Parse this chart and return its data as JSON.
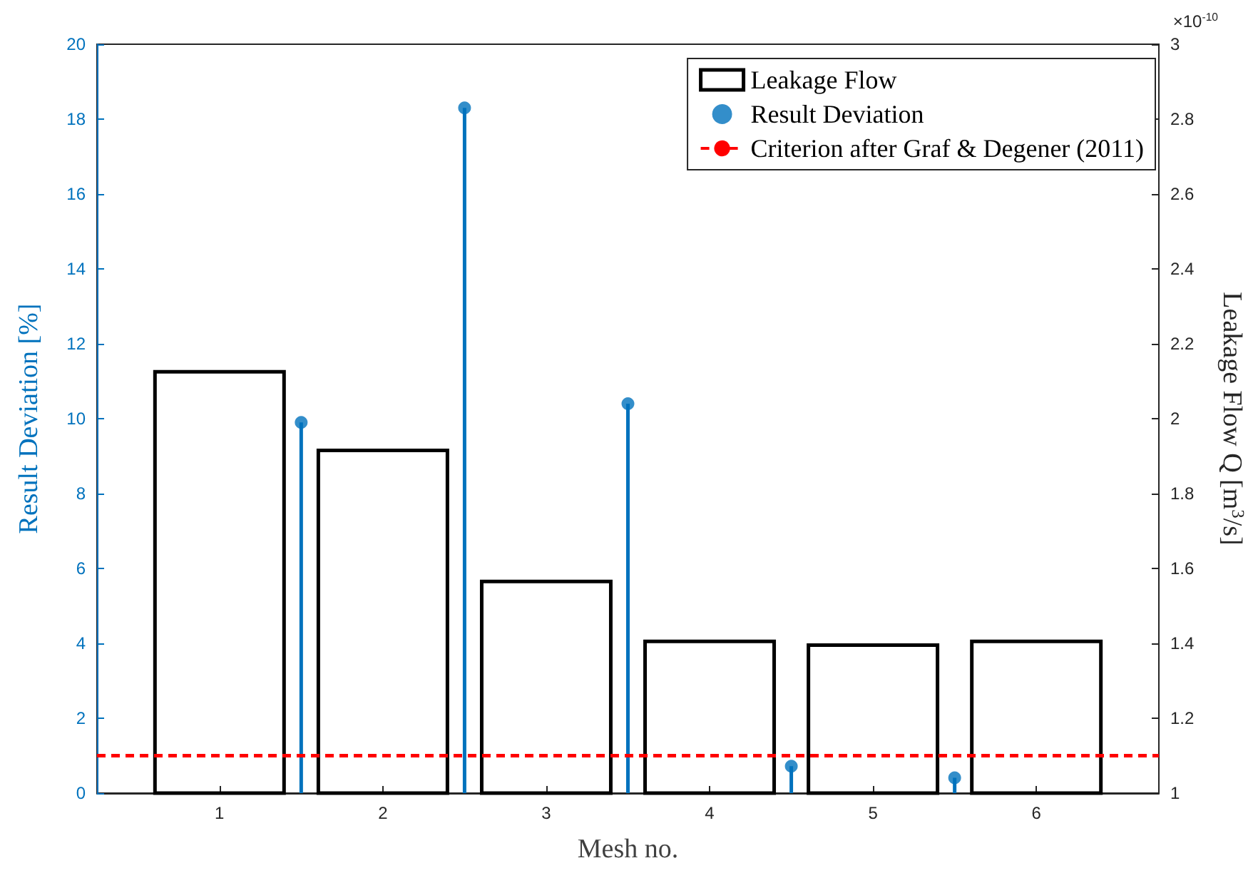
{
  "chart_data": {
    "type": "bar",
    "xlabel": "Mesh no.",
    "ylabel": "Result Deviation [%]",
    "y2label": "Leakage Flow Q [m$^{3}$/s]",
    "annotations": [
      "×10$^{-10}$"
    ],
    "x": [
      1,
      2,
      3,
      4,
      5,
      6
    ],
    "xlim": [
      0.25,
      6.75
    ],
    "xticks": [
      1,
      2,
      3,
      4,
      5,
      6
    ],
    "ylim": [
      0,
      20
    ],
    "yticks": [
      0,
      2,
      4,
      6,
      8,
      10,
      12,
      14,
      16,
      18,
      20
    ],
    "y2lim": [
      1,
      3
    ],
    "y2ticks": [
      1,
      1.2,
      1.4,
      1.6,
      1.8,
      2,
      2.2,
      2.4,
      2.6,
      2.8,
      3
    ],
    "series": [
      {
        "name": "Leakage Flow",
        "axis": "y2",
        "color": "#000000",
        "values": [
          2.13,
          1.92,
          1.57,
          1.41,
          1.4,
          1.41
        ]
      },
      {
        "name": "Result Deviation",
        "type": "lollipop",
        "color": "#0072bd",
        "x": [
          1.5,
          2.5,
          3.5,
          4.5,
          5.5
        ],
        "values": [
          9.9,
          18.3,
          10.4,
          0.72,
          0.41
        ]
      }
    ],
    "ref_lines": [
      {
        "axis": "y",
        "value": 1,
        "label": "Criterion after Graf & Degener (2011)",
        "color": "#ff0000",
        "line_style": "dashed"
      }
    ],
    "legend": "top right",
    "marker": "circle"
  }
}
